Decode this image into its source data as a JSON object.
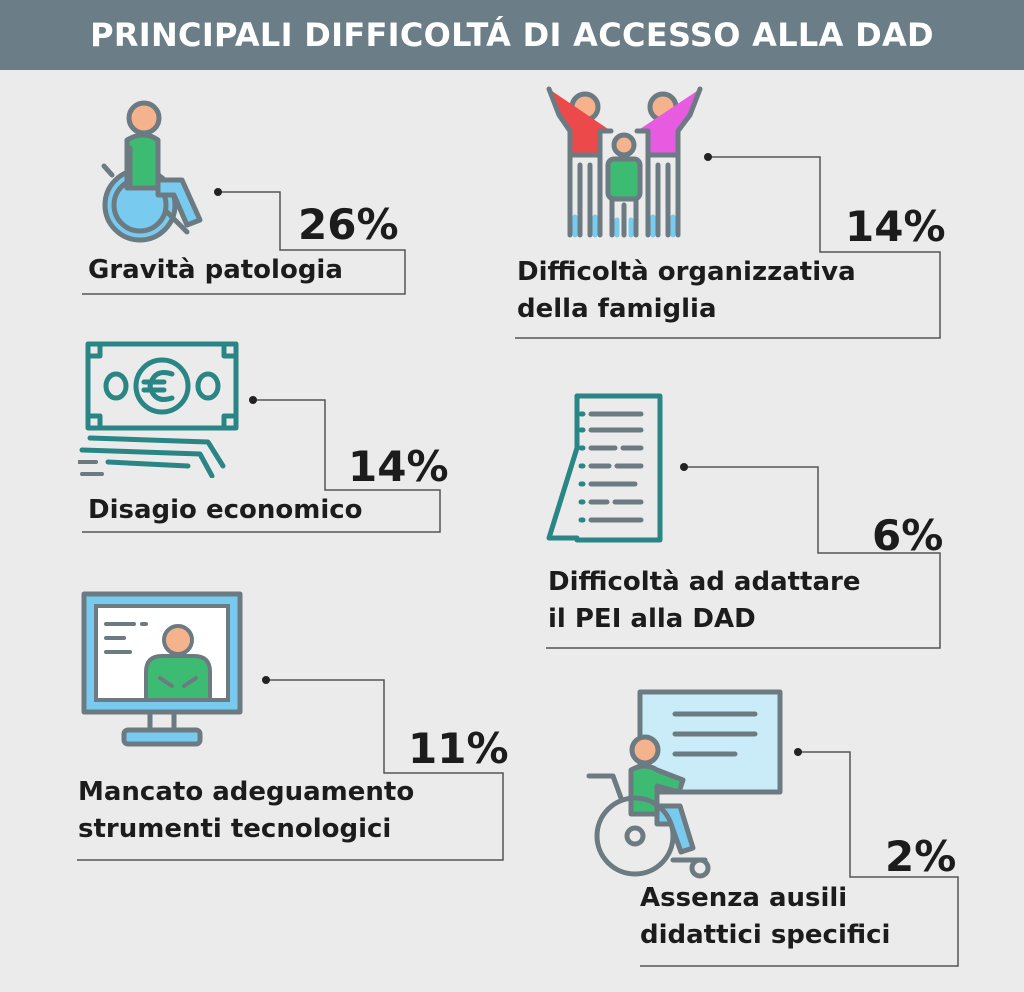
{
  "title": "PRINCIPALI DIFFICOLTÁ DI ACCESSO ALLA DAD",
  "items": [
    {
      "percent": "26%",
      "line1": "Gravità patologia",
      "line2": "",
      "icon": "wheelchair-user-icon"
    },
    {
      "percent": "14%",
      "line1": "Difficoltà organizzativa",
      "line2": "della famiglia",
      "icon": "family-icon"
    },
    {
      "percent": "14%",
      "line1": "Disagio economico",
      "line2": "",
      "icon": "euro-banknotes-icon"
    },
    {
      "percent": "6%",
      "line1": "Difficoltà ad adattare",
      "line2": "il PEI alla DAD",
      "icon": "document-icon"
    },
    {
      "percent": "11%",
      "line1": "Mancato adeguamento",
      "line2": "strumenti tecnologici",
      "icon": "computer-monitor-teacher-icon"
    },
    {
      "percent": "2%",
      "line1": "Assenza ausili",
      "line2": "didattici specifici",
      "icon": "wheelchair-whiteboard-icon"
    }
  ],
  "colors": {
    "header_bg": "#6b7e87",
    "teal": "#2a8585",
    "gray_outline": "#6c7b82",
    "skin": "#f4b38c",
    "green": "#3dbb73",
    "light_blue": "#78cbee",
    "red": "#ec4a4a",
    "pink": "#e65be0"
  }
}
